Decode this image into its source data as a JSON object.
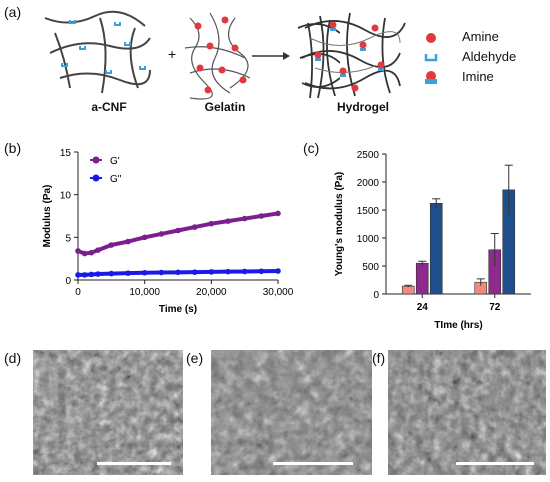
{
  "panels": {
    "a": {
      "label": "(a)",
      "components": [
        "a-CNF",
        "Gelatin",
        "Hydrogel"
      ],
      "operator_plus": "+",
      "legend": [
        {
          "name": "Amine",
          "symbol": "red-circle",
          "color": "#e0393e"
        },
        {
          "name": "Aldehyde",
          "symbol": "blue-bracket",
          "color": "#3aa1d9"
        },
        {
          "name": "Imine",
          "symbol": "red-over-blue",
          "color": "#e0393e"
        }
      ]
    },
    "b": {
      "label": "(b)"
    },
    "c": {
      "label": "(c)"
    },
    "d": {
      "label": "(d)"
    },
    "e": {
      "label": "(e)"
    },
    "f": {
      "label": "(f)"
    }
  },
  "chart_data": [
    {
      "type": "scatter",
      "xlabel": "Time (s)",
      "ylabel": "Modulus (Pa)",
      "xlim": [
        0,
        30000
      ],
      "ylim": [
        0,
        15
      ],
      "x_ticks": [
        0,
        10000,
        20000,
        30000
      ],
      "x_tick_labels": [
        "0",
        "10,000",
        "20,000",
        "30,000"
      ],
      "y_ticks": [
        0,
        5,
        10,
        15
      ],
      "y_tick_labels": [
        "0",
        "5",
        "10",
        "15"
      ],
      "legend_position": "top-left",
      "series": [
        {
          "name": "G'",
          "color": "#7b1f8f",
          "x": [
            0,
            1000,
            2000,
            3000,
            5000,
            7500,
            10000,
            12500,
            15000,
            17500,
            20000,
            22500,
            25000,
            27500,
            30000
          ],
          "y": [
            3.4,
            3.1,
            3.2,
            3.5,
            4.1,
            4.5,
            5.0,
            5.4,
            5.8,
            6.2,
            6.6,
            6.9,
            7.2,
            7.5,
            7.8
          ]
        },
        {
          "name": "G\"",
          "color": "#1a1ae6",
          "x": [
            0,
            1000,
            2000,
            3000,
            5000,
            7500,
            10000,
            12500,
            15000,
            17500,
            20000,
            22500,
            25000,
            27500,
            30000
          ],
          "y": [
            0.6,
            0.6,
            0.65,
            0.7,
            0.75,
            0.8,
            0.85,
            0.88,
            0.9,
            0.92,
            0.95,
            0.98,
            1.0,
            1.02,
            1.05
          ]
        }
      ]
    },
    {
      "type": "bar",
      "xlabel": "TIme (hrs)",
      "ylabel": "Young's modulus (Pa)",
      "categories": [
        "24",
        "72"
      ],
      "ylim": [
        0,
        2500
      ],
      "y_ticks": [
        0,
        500,
        1000,
        1500,
        2000,
        2500
      ],
      "y_tick_labels": [
        "0",
        "500",
        "1000",
        "1500",
        "2000",
        "2500"
      ],
      "series": [
        {
          "color": "#f08a7e",
          "values": [
            140,
            210
          ],
          "errors": [
            15,
            60
          ]
        },
        {
          "color": "#8e2a8e",
          "values": [
            550,
            790
          ],
          "errors": [
            35,
            290
          ]
        },
        {
          "color": "#1f4e8c",
          "values": [
            1620,
            1860
          ],
          "errors": [
            80,
            440
          ]
        }
      ]
    }
  ]
}
